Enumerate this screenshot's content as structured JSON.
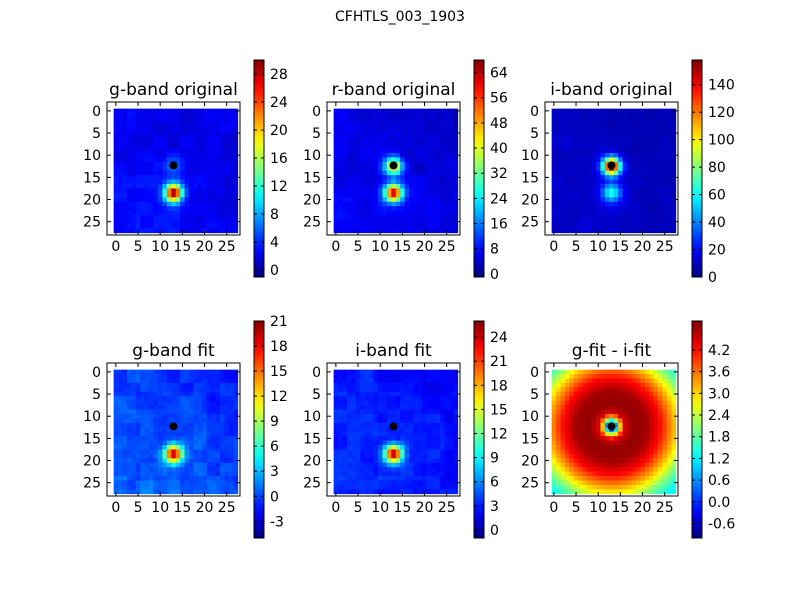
{
  "figure": {
    "suptitle": "CFHTLS_003_1903"
  },
  "chart_data": [
    {
      "type": "heatmap",
      "title": "g-band original",
      "xlabel": "",
      "ylabel": "",
      "grid": false,
      "x_ticks": [
        "0",
        "5",
        "10",
        "15",
        "20",
        "25"
      ],
      "y_ticks": [
        "0",
        "5",
        "10",
        "15",
        "20",
        "25"
      ],
      "image_extent": [
        0,
        27
      ],
      "colormap": "jet",
      "clim": [
        -1,
        30
      ],
      "colorbar_ticks": [
        "0",
        "4",
        "8",
        "12",
        "16",
        "20",
        "24",
        "28"
      ],
      "colorbar_tick_values": [
        0,
        4,
        8,
        12,
        16,
        20,
        24,
        28
      ],
      "background_level": 2.5,
      "noise": 1.2,
      "sources": [
        {
          "x": 13,
          "y": 18.5,
          "sigma": 1.4,
          "amp": 27
        },
        {
          "x": 13,
          "y": 12.5,
          "sigma": 1.6,
          "amp": 4
        }
      ],
      "marker": {
        "x": 13,
        "y": 12.3
      }
    },
    {
      "type": "heatmap",
      "title": "r-band original",
      "xlabel": "",
      "ylabel": "",
      "grid": false,
      "x_ticks": [
        "0",
        "5",
        "10",
        "15",
        "20",
        "25"
      ],
      "y_ticks": [
        "0",
        "5",
        "10",
        "15",
        "20",
        "25"
      ],
      "image_extent": [
        0,
        27
      ],
      "colormap": "jet",
      "clim": [
        -1,
        68
      ],
      "colorbar_ticks": [
        "0",
        "8",
        "16",
        "24",
        "32",
        "40",
        "48",
        "56",
        "64"
      ],
      "colorbar_tick_values": [
        0,
        8,
        16,
        24,
        32,
        40,
        48,
        56,
        64
      ],
      "background_level": 6,
      "noise": 2.5,
      "sources": [
        {
          "x": 13,
          "y": 18.5,
          "sigma": 1.4,
          "amp": 58
        },
        {
          "x": 13,
          "y": 12.5,
          "sigma": 1.4,
          "amp": 40
        }
      ],
      "marker": {
        "x": 13,
        "y": 12.3
      }
    },
    {
      "type": "heatmap",
      "title": "i-band original",
      "xlabel": "",
      "ylabel": "",
      "grid": false,
      "x_ticks": [
        "0",
        "5",
        "10",
        "15",
        "20",
        "25"
      ],
      "y_ticks": [
        "0",
        "5",
        "10",
        "15",
        "20",
        "25"
      ],
      "image_extent": [
        0,
        27
      ],
      "colormap": "jet",
      "clim": [
        0,
        158
      ],
      "colorbar_ticks": [
        "0",
        "20",
        "40",
        "60",
        "80",
        "100",
        "120",
        "140"
      ],
      "colorbar_tick_values": [
        0,
        20,
        40,
        60,
        80,
        100,
        120,
        140
      ],
      "background_level": 10,
      "noise": 3,
      "sources": [
        {
          "x": 13,
          "y": 12.5,
          "sigma": 1.4,
          "amp": 150
        },
        {
          "x": 13,
          "y": 18.5,
          "sigma": 1.5,
          "amp": 55
        }
      ],
      "marker": {
        "x": 13,
        "y": 12.3
      }
    },
    {
      "type": "heatmap",
      "title": "g-band fit",
      "xlabel": "",
      "ylabel": "",
      "grid": false,
      "x_ticks": [
        "0",
        "5",
        "10",
        "15",
        "20",
        "25"
      ],
      "y_ticks": [
        "0",
        "5",
        "10",
        "15",
        "20",
        "25"
      ],
      "image_extent": [
        0,
        27
      ],
      "colormap": "jet",
      "clim": [
        -5,
        21
      ],
      "colorbar_ticks": [
        "-3",
        "0",
        "3",
        "6",
        "9",
        "12",
        "15",
        "18",
        "21"
      ],
      "colorbar_tick_values": [
        -3,
        0,
        3,
        6,
        9,
        12,
        15,
        18,
        21
      ],
      "background_level": 0,
      "noise": 1.4,
      "sources": [
        {
          "x": 13,
          "y": 18.5,
          "sigma": 1.4,
          "amp": 20
        }
      ],
      "marker": {
        "x": 13,
        "y": 12.3
      }
    },
    {
      "type": "heatmap",
      "title": "i-band fit",
      "xlabel": "",
      "ylabel": "",
      "grid": false,
      "x_ticks": [
        "0",
        "5",
        "10",
        "15",
        "20",
        "25"
      ],
      "y_ticks": [
        "0",
        "5",
        "10",
        "15",
        "20",
        "25"
      ],
      "image_extent": [
        0,
        27
      ],
      "colormap": "jet",
      "clim": [
        -1,
        26
      ],
      "colorbar_ticks": [
        "0",
        "3",
        "6",
        "9",
        "12",
        "15",
        "18",
        "21",
        "24"
      ],
      "colorbar_tick_values": [
        0,
        3,
        6,
        9,
        12,
        15,
        18,
        21,
        24
      ],
      "background_level": 3,
      "noise": 1.2,
      "sources": [
        {
          "x": 13,
          "y": 18.5,
          "sigma": 1.4,
          "amp": 22
        }
      ],
      "marker": {
        "x": 13,
        "y": 12.3
      }
    },
    {
      "type": "heatmap",
      "title": "g-fit - i-fit",
      "xlabel": "",
      "ylabel": "",
      "grid": false,
      "x_ticks": [
        "0",
        "5",
        "10",
        "15",
        "20",
        "25"
      ],
      "y_ticks": [
        "0",
        "5",
        "10",
        "15",
        "20",
        "25"
      ],
      "image_extent": [
        0,
        27
      ],
      "colormap": "jet",
      "clim": [
        -1,
        5
      ],
      "colorbar_ticks": [
        "-0.6",
        "0.0",
        "0.6",
        "1.2",
        "1.8",
        "2.4",
        "3.0",
        "3.6",
        "4.2"
      ],
      "colorbar_tick_values": [
        -0.6,
        0.0,
        0.6,
        1.2,
        1.8,
        2.4,
        3.0,
        3.6,
        4.2
      ],
      "radial_profile": {
        "center_x": 13,
        "center_y": 12.3,
        "r_values": [
          0,
          1,
          2,
          3,
          5,
          8,
          11,
          14,
          17,
          19.5
        ],
        "levels": [
          -0.8,
          0.5,
          3.0,
          4.5,
          4.9,
          4.8,
          4.2,
          3.2,
          2.0,
          1.3
        ]
      },
      "marker": {
        "x": 13,
        "y": 12.3
      }
    }
  ]
}
